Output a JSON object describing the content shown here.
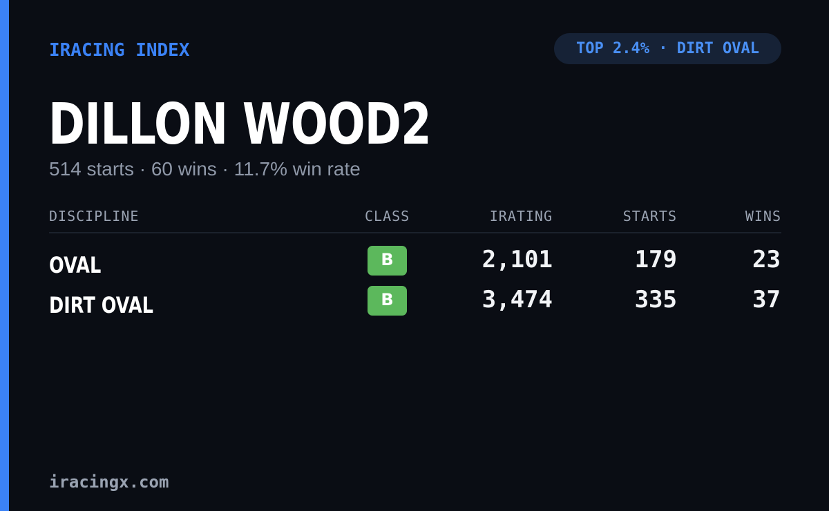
{
  "header": {
    "brand": "IRACING INDEX",
    "rank_badge": "TOP 2.4% · DIRT OVAL"
  },
  "driver": {
    "name": "DILLON WOOD2",
    "summary": "514 starts · 60 wins · 11.7% win rate"
  },
  "table": {
    "columns": {
      "discipline": "DISCIPLINE",
      "class": "CLASS",
      "irating": "IRATING",
      "starts": "STARTS",
      "wins": "WINS"
    },
    "rows": [
      {
        "discipline": "OVAL",
        "class": "B",
        "irating": "2,101",
        "starts": "179",
        "wins": "23"
      },
      {
        "discipline": "DIRT OVAL",
        "class": "B",
        "irating": "3,474",
        "starts": "335",
        "wins": "37"
      }
    ]
  },
  "footer": {
    "site": "iracingx.com"
  },
  "colors": {
    "background": "#0a0d14",
    "accent": "#3b82f6",
    "class_b": "#5cb85c",
    "muted": "#9aa3b2"
  }
}
